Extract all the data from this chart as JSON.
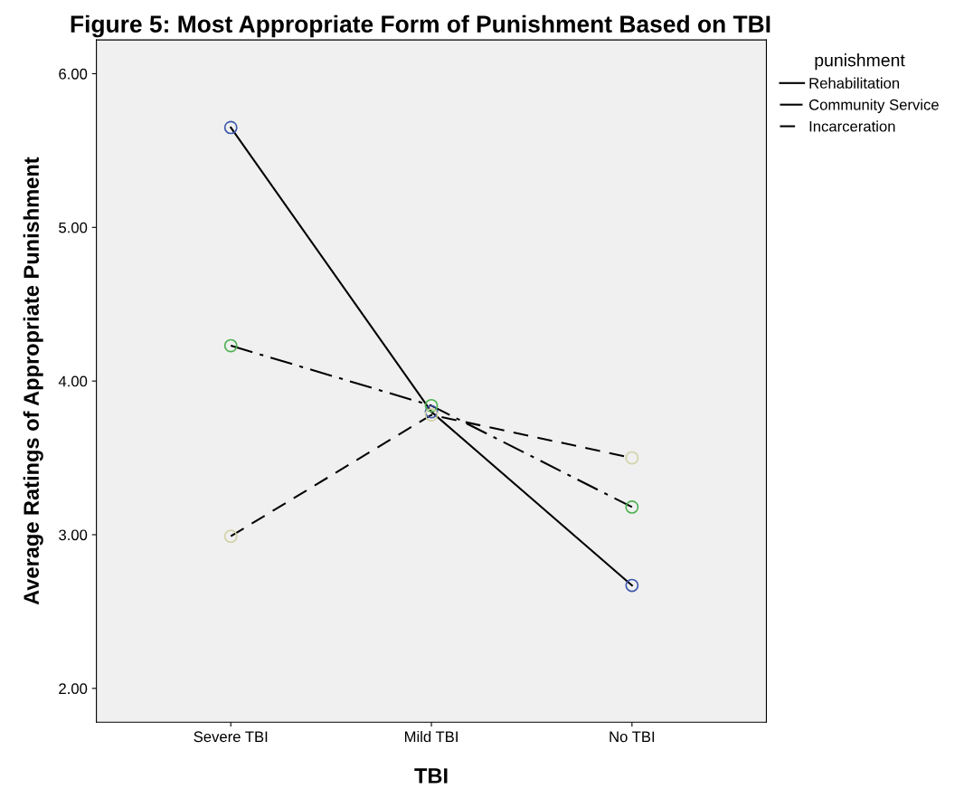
{
  "chart_data": {
    "type": "line",
    "title": "Figure 5: Most Appropriate Form of Punishment Based on TBI",
    "xlabel": "TBI",
    "ylabel": "Average Ratings of Appropriate Punishment",
    "legend_title": "punishment",
    "legend": "top right",
    "grid": false,
    "marker": "circle",
    "categories": [
      "Severe TBI",
      "Mild TBI",
      "No TBI"
    ],
    "ylim": [
      1.78,
      6.22
    ],
    "yticks": [
      {
        "value": 2,
        "label": "2.00"
      },
      {
        "value": 3,
        "label": "3.00"
      },
      {
        "value": 4,
        "label": "4.00"
      },
      {
        "value": 5,
        "label": "5.00"
      },
      {
        "value": 6,
        "label": "6.00"
      }
    ],
    "series": [
      {
        "name": "Rehabilitation",
        "color": "#000000",
        "colors": [
          "#3e58ac",
          "#3e58ac",
          "#3e58ac"
        ],
        "line_style": "solid",
        "values": [
          5.65,
          3.8,
          2.67
        ]
      },
      {
        "name": "Community Service",
        "color": "#000000",
        "colors": [
          "#4cb050",
          "#4cb050",
          "#4cb050"
        ],
        "line_style": "dashdot",
        "values": [
          4.23,
          3.84,
          3.18
        ]
      },
      {
        "name": "Incarceration",
        "color": "#000000",
        "colors": [
          "#d2d2a8",
          "#d2d2a8",
          "#d2d2a8"
        ],
        "line_style": "dashed",
        "values": [
          2.99,
          3.78,
          3.5
        ]
      }
    ]
  }
}
